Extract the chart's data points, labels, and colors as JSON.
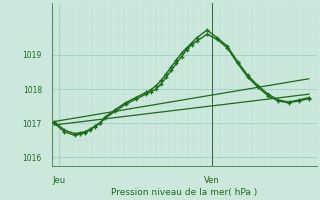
{
  "xlabel": "Pression niveau de la mer( hPa )",
  "bg_color": "#cce8dc",
  "plot_bg_color": "#cce8dc",
  "grid_color_major": "#99ccbb",
  "grid_color_minor": "#b8ddd0",
  "line_color": "#1a6b1a",
  "tick_label_color": "#1a6b1a",
  "xlabel_color": "#1a6b1a",
  "vline_color": "#336633",
  "ylim": [
    1015.75,
    1020.5
  ],
  "yticks": [
    1016,
    1017,
    1018,
    1019
  ],
  "day_labels": [
    "Jeu",
    "Ven"
  ],
  "day_positions": [
    0.02,
    0.62
  ],
  "vline_pos": 0.62,
  "xlim": [
    -0.01,
    1.03
  ],
  "series": [
    {
      "x": [
        0.0,
        1.0
      ],
      "y": [
        1017.05,
        1018.3
      ],
      "lw": 0.9,
      "marker": null,
      "ms": 0
    },
    {
      "x": [
        0.0,
        1.0
      ],
      "y": [
        1016.95,
        1017.85
      ],
      "lw": 0.9,
      "marker": null,
      "ms": 0
    },
    {
      "x": [
        0.0,
        0.04,
        0.08,
        0.1,
        0.12,
        0.14,
        0.16,
        0.18,
        0.2,
        0.24,
        0.28,
        0.32,
        0.36,
        0.38,
        0.4,
        0.42,
        0.44,
        0.46,
        0.48,
        0.5,
        0.52,
        0.54,
        0.56,
        0.6,
        0.64,
        0.68,
        0.72,
        0.76,
        0.8,
        0.84,
        0.88,
        0.92,
        0.96,
        1.0
      ],
      "y": [
        1017.0,
        1016.75,
        1016.65,
        1016.68,
        1016.72,
        1016.8,
        1016.9,
        1017.0,
        1017.15,
        1017.35,
        1017.55,
        1017.7,
        1017.85,
        1017.92,
        1018.0,
        1018.15,
        1018.35,
        1018.55,
        1018.75,
        1018.95,
        1019.15,
        1019.3,
        1019.4,
        1019.6,
        1019.45,
        1019.2,
        1018.75,
        1018.35,
        1018.05,
        1017.8,
        1017.65,
        1017.6,
        1017.65,
        1017.72
      ],
      "lw": 1.0,
      "marker": "+",
      "ms": 3.5
    },
    {
      "x": [
        0.0,
        0.04,
        0.08,
        0.1,
        0.12,
        0.14,
        0.16,
        0.18,
        0.2,
        0.24,
        0.28,
        0.32,
        0.36,
        0.38,
        0.4,
        0.42,
        0.44,
        0.46,
        0.48,
        0.5,
        0.52,
        0.54,
        0.56,
        0.6,
        0.64,
        0.68,
        0.72,
        0.76,
        0.8,
        0.84,
        0.88,
        0.92,
        0.96,
        1.0
      ],
      "y": [
        1017.05,
        1016.8,
        1016.7,
        1016.72,
        1016.75,
        1016.82,
        1016.92,
        1017.02,
        1017.18,
        1017.4,
        1017.6,
        1017.75,
        1017.9,
        1017.98,
        1018.1,
        1018.25,
        1018.45,
        1018.65,
        1018.85,
        1019.05,
        1019.2,
        1019.35,
        1019.5,
        1019.72,
        1019.5,
        1019.25,
        1018.8,
        1018.4,
        1018.1,
        1017.85,
        1017.68,
        1017.62,
        1017.68,
        1017.75
      ],
      "lw": 1.0,
      "marker": "+",
      "ms": 3.5
    }
  ]
}
